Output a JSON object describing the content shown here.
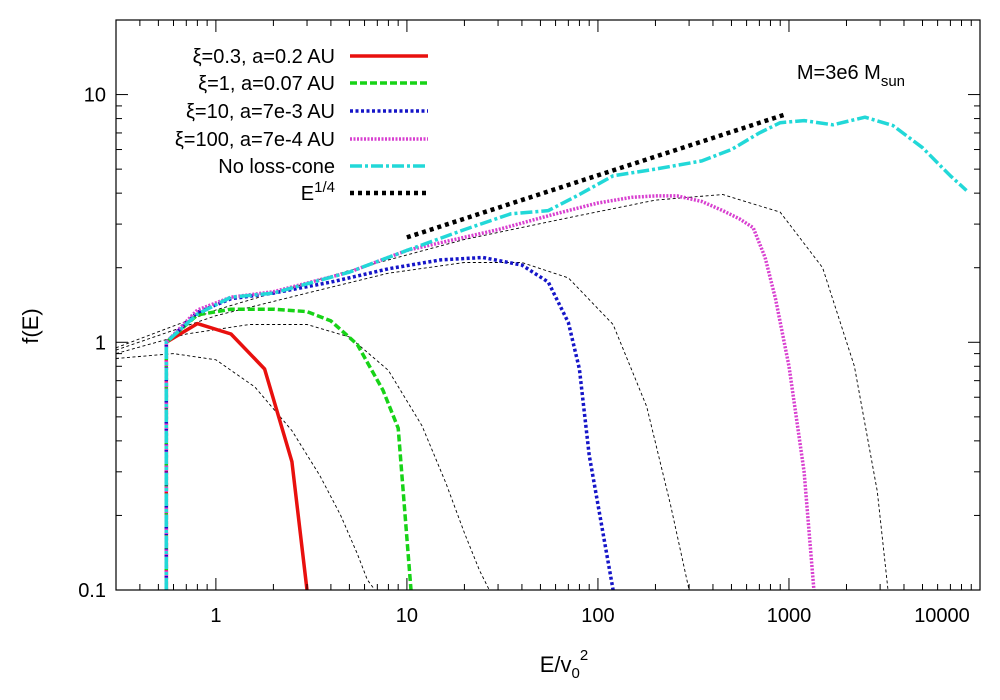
{
  "chart_data": {
    "type": "line",
    "xlabel": "E/v",
    "xlabel_sub": "0",
    "xlabel_sup": "2",
    "ylabel": "f(E)",
    "xscale": "log",
    "yscale": "log",
    "xlim": [
      0.3,
      10000
    ],
    "ylim": [
      0.1,
      20
    ],
    "x_ticks": [
      1,
      10,
      100,
      1000,
      10000
    ],
    "x_tick_labels": [
      "1",
      "10",
      "100",
      "1000",
      "10000"
    ],
    "y_ticks": [
      0.1,
      1,
      10
    ],
    "y_tick_labels": [
      "0.1",
      "1",
      "10"
    ],
    "legend_position": "top-left",
    "annotation": {
      "text": "M=3e6 M",
      "sub": "sun",
      "position": "top-right"
    },
    "series": [
      {
        "name": "ξ=0.3, a=0.2 AU",
        "color": "#e8100e",
        "dash": "solid",
        "x": [
          0.55,
          0.55,
          0.8,
          1.2,
          1.8,
          2.5,
          3.0
        ],
        "y": [
          0.1,
          1.0,
          1.19,
          1.08,
          0.78,
          0.33,
          0.1
        ]
      },
      {
        "name": "ξ=1, a=0.07 AU",
        "color": "#17d317",
        "dash": "dash",
        "x": [
          0.55,
          0.55,
          0.8,
          1.2,
          2.0,
          3.0,
          4.0,
          5.5,
          7.5,
          9.0,
          10.5
        ],
        "y": [
          0.1,
          1.0,
          1.29,
          1.36,
          1.36,
          1.33,
          1.22,
          0.98,
          0.64,
          0.45,
          0.1
        ]
      },
      {
        "name": "ξ=10, a=7e-3 AU",
        "color": "#1515c8",
        "dash": "dot",
        "x": [
          0.55,
          0.55,
          0.8,
          1.2,
          2,
          4,
          8,
          15,
          25,
          40,
          55,
          70,
          80,
          90,
          120
        ],
        "y": [
          0.1,
          1.0,
          1.32,
          1.5,
          1.58,
          1.75,
          1.98,
          2.15,
          2.2,
          2.05,
          1.75,
          1.2,
          0.78,
          0.35,
          0.1
        ]
      },
      {
        "name": "ξ=100, a=7e-4 AU",
        "color": "#d840d0",
        "dash": "dot-dense",
        "x": [
          0.55,
          0.55,
          0.8,
          1.2,
          2,
          5,
          10,
          30,
          60,
          100,
          150,
          200,
          260,
          350,
          450,
          550,
          650,
          750,
          850,
          1000,
          1200,
          1350
        ],
        "y": [
          0.1,
          1.0,
          1.35,
          1.52,
          1.6,
          1.92,
          2.35,
          2.85,
          3.3,
          3.65,
          3.85,
          3.9,
          3.9,
          3.7,
          3.4,
          3.15,
          2.9,
          2.2,
          1.5,
          0.8,
          0.3,
          0.1
        ]
      },
      {
        "name": "No loss-cone",
        "color": "#22d8d8",
        "dash": "dash-dot",
        "x": [
          0.55,
          0.55,
          0.8,
          1.2,
          2,
          5,
          10,
          20,
          35,
          55,
          80,
          120,
          200,
          350,
          500,
          700,
          900,
          1200,
          1700,
          2500,
          3500,
          5000,
          7000,
          8500
        ],
        "y": [
          0.1,
          1.0,
          1.3,
          1.52,
          1.58,
          1.92,
          2.35,
          2.85,
          3.3,
          3.4,
          3.95,
          4.7,
          5.0,
          5.4,
          6.0,
          7.0,
          7.7,
          7.85,
          7.55,
          8.1,
          7.5,
          6.1,
          4.7,
          4.1
        ]
      },
      {
        "name": "E",
        "name_sup": "1/4",
        "color": "#000000",
        "dash": "dot-thick",
        "x": [
          10,
          950
        ],
        "y": [
          2.65,
          8.3
        ]
      }
    ],
    "reference_curves": [
      {
        "x": [
          0.3,
          0.6,
          1.0,
          1.6,
          2.5,
          3.5,
          4.5,
          5.5,
          6.2,
          6.8
        ],
        "y": [
          0.86,
          0.9,
          0.85,
          0.66,
          0.44,
          0.29,
          0.2,
          0.14,
          0.11,
          0.1
        ]
      },
      {
        "x": [
          0.3,
          0.7,
          1.5,
          3,
          5,
          8,
          12,
          16,
          20,
          24,
          27
        ],
        "y": [
          0.9,
          1.08,
          1.18,
          1.18,
          1.05,
          0.77,
          0.46,
          0.27,
          0.17,
          0.12,
          0.1
        ]
      },
      {
        "x": [
          0.3,
          1,
          3,
          8,
          20,
          40,
          70,
          120,
          180,
          240,
          300
        ],
        "y": [
          0.93,
          1.28,
          1.58,
          1.9,
          2.1,
          2.1,
          1.82,
          1.18,
          0.55,
          0.22,
          0.1
        ]
      },
      {
        "x": [
          0.3,
          1,
          5,
          20,
          80,
          200,
          450,
          900,
          1500,
          2200,
          2900,
          3300
        ],
        "y": [
          0.95,
          1.35,
          1.95,
          2.6,
          3.25,
          3.75,
          3.95,
          3.35,
          2.0,
          0.8,
          0.25,
          0.1
        ]
      }
    ]
  }
}
